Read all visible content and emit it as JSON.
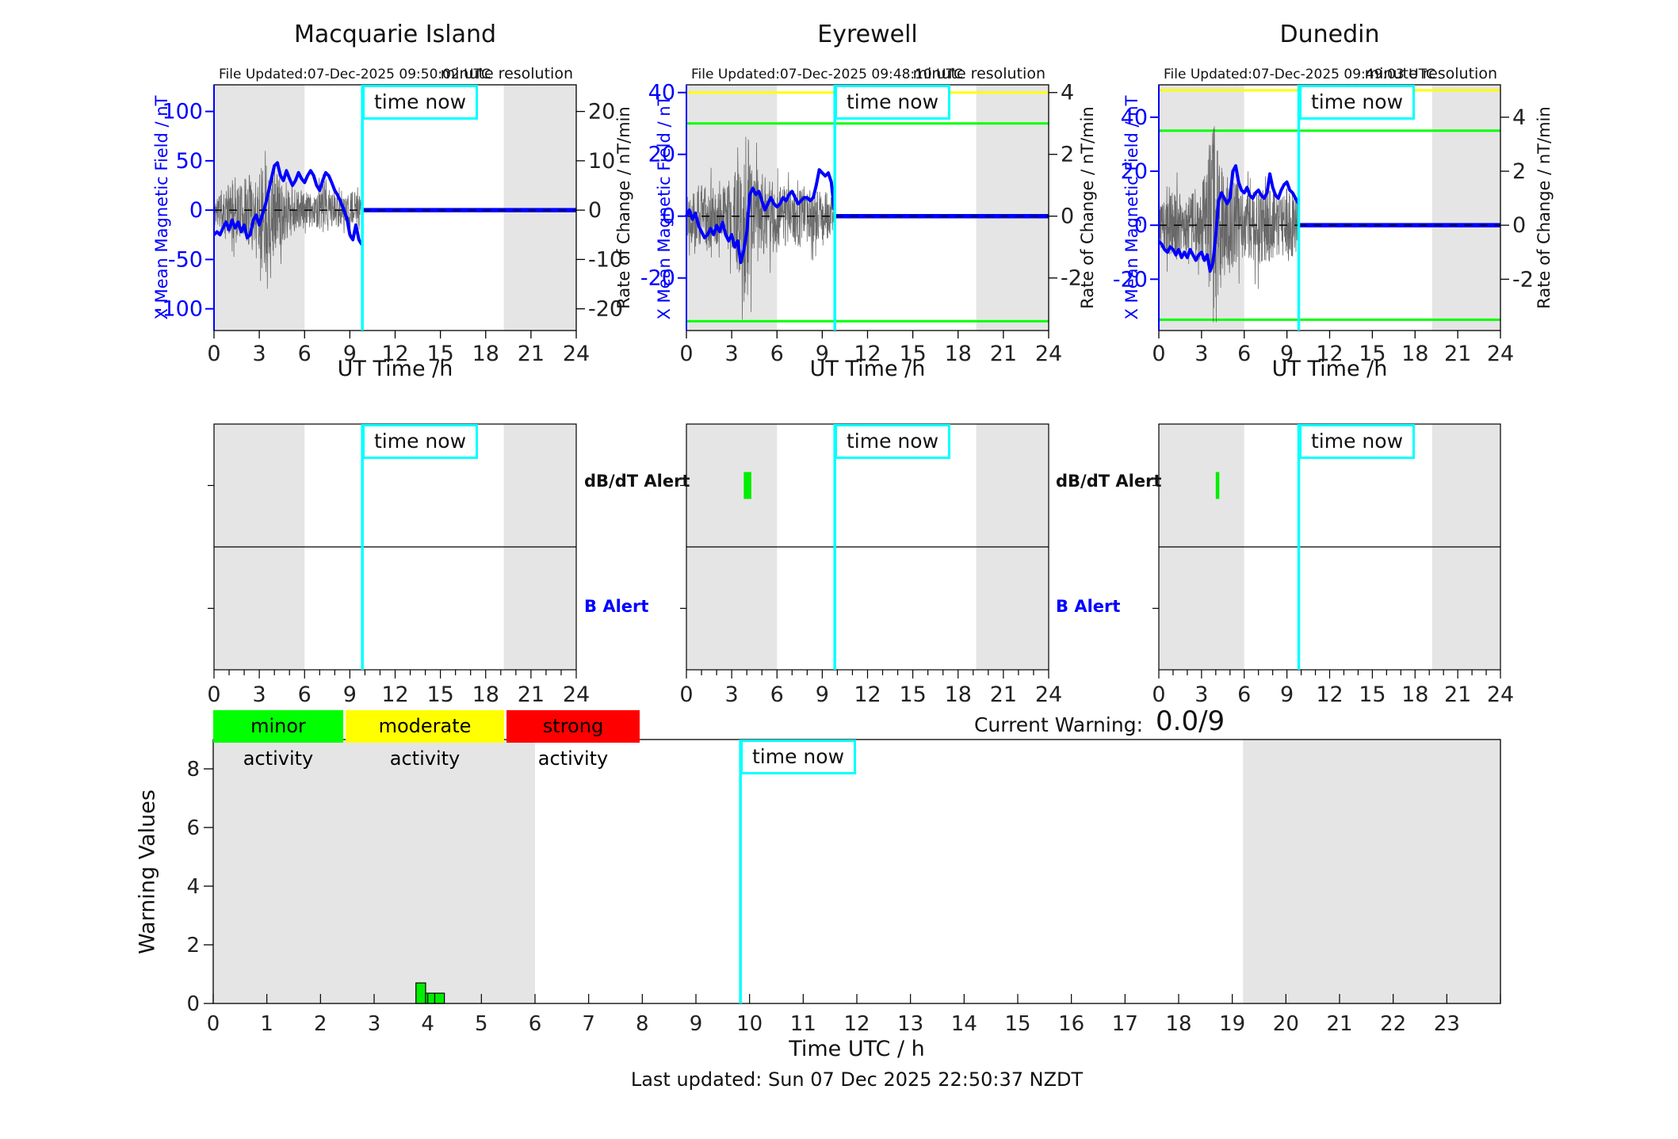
{
  "labels": {
    "time_now": "time now",
    "dbdt_alert": "dB/dT Alert",
    "b_alert": "B Alert",
    "current_warning_label": "Current Warning:",
    "current_warning_value": "0.0/9",
    "legend": [
      {
        "label": "minor activity",
        "color": "#00ff00"
      },
      {
        "label": "moderate activity",
        "color": "#ffff00"
      },
      {
        "label": "strong activity",
        "color": "#ff0000"
      }
    ],
    "footer": "Last updated: Sun 07 Dec 2025 22:50:37 NZDT"
  },
  "colors": {
    "line": "#0000ff",
    "noise": "#5a5a5a",
    "shade": "#e5e5e5",
    "cyan": "#00ffff",
    "threshold_yellow": "#ffff00",
    "threshold_green": "#00ff00",
    "alert_mark": "#00ee00",
    "bar_green": "#00ee00",
    "tick_text": "#222222"
  },
  "chart_data": [
    {
      "id": "macquarie",
      "type": "line",
      "title": "Macquarie Island",
      "file_updated": "File Updated:07-Dec-2025 09:50:02 UTC",
      "resolution_note": "minute resolution",
      "xlabel": "UT Time /h",
      "ylabel_left": "X Mean Magnetic Field / nT",
      "ylabel_right": "Rate of Change / nT/min",
      "xlim": [
        0,
        24
      ],
      "xticks": [
        0,
        3,
        6,
        9,
        12,
        15,
        18,
        21,
        24
      ],
      "ylim": [
        -122,
        127
      ],
      "yticks_left": [
        100,
        50,
        0,
        -50,
        -100
      ],
      "yticks_right": [
        20,
        10,
        0,
        -10,
        -20
      ],
      "right_scale": 5,
      "thresholds": [],
      "night_shading": [
        [
          0,
          6
        ],
        [
          19.2,
          24
        ]
      ],
      "time_now": 9.83,
      "noise_seed": 11,
      "series": {
        "t_start": 0,
        "t_step": 0.2,
        "mean_field": [
          -25,
          -22,
          -25,
          -18,
          -12,
          -20,
          -10,
          -18,
          -12,
          -22,
          -15,
          -28,
          -25,
          -10,
          -5,
          -15,
          -5,
          5,
          18,
          32,
          45,
          48,
          35,
          30,
          40,
          32,
          25,
          30,
          38,
          32,
          28,
          35,
          40,
          35,
          25,
          20,
          30,
          38,
          35,
          28,
          20,
          15,
          8,
          0,
          -8,
          -25,
          -30,
          -15,
          -30,
          -35
        ]
      },
      "noise_envelope": [
        18,
        18,
        20,
        22,
        25,
        28,
        30,
        35,
        30,
        25,
        30,
        40,
        45,
        40,
        35,
        45,
        55,
        65,
        60,
        50,
        45,
        40,
        35,
        32,
        30,
        28,
        25,
        22,
        20,
        20,
        18,
        18,
        16,
        15,
        18,
        22,
        25,
        28,
        25,
        22,
        20,
        18,
        15,
        15,
        15,
        18,
        20,
        18,
        15,
        12
      ]
    },
    {
      "id": "eyrewell",
      "type": "line",
      "title": "Eyrewell",
      "file_updated": "File Updated:07-Dec-2025 09:48:10 UTC",
      "resolution_note": "minute resolution",
      "xlabel": "UT Time /h",
      "ylabel_left": "X Mean Magnetic Field / nT",
      "ylabel_right": "Rate of Change / nT/min",
      "xlim": [
        0,
        24
      ],
      "xticks": [
        0,
        3,
        6,
        9,
        12,
        15,
        18,
        21,
        24
      ],
      "ylim": [
        -37,
        42.5
      ],
      "yticks_left": [
        40,
        20,
        0,
        -20
      ],
      "yticks_right": [
        4,
        2,
        0,
        -2
      ],
      "right_scale": 10,
      "thresholds": [
        {
          "v": 40,
          "color": "#ffff00"
        },
        {
          "v": 30,
          "color": "#00ff00"
        },
        {
          "v": -34,
          "color": "#00ff00"
        }
      ],
      "night_shading": [
        [
          0,
          6
        ],
        [
          19.2,
          24
        ]
      ],
      "time_now": 9.83,
      "noise_seed": 22,
      "series": {
        "t_start": 0,
        "t_step": 0.2,
        "mean_field": [
          0,
          2,
          -1,
          1,
          -3,
          -5,
          -7,
          -6,
          -4,
          -6,
          -3,
          -5,
          -2,
          -6,
          -8,
          -6,
          -10,
          -8,
          -15,
          -11,
          -5,
          7,
          9,
          7,
          8,
          5,
          2,
          4,
          6,
          4,
          3,
          4,
          6,
          5,
          7,
          8,
          6,
          4,
          5,
          6,
          6,
          5,
          6,
          10,
          15,
          14,
          13,
          14,
          11,
          2
        ]
      },
      "noise_envelope": [
        8,
        8,
        9,
        10,
        10,
        10,
        11,
        12,
        10,
        10,
        9,
        10,
        10,
        11,
        12,
        12,
        14,
        18,
        25,
        30,
        28,
        22,
        18,
        16,
        15,
        14,
        13,
        12,
        12,
        12,
        12,
        11,
        11,
        10,
        10,
        10,
        10,
        10,
        10,
        10,
        9,
        9,
        9,
        8,
        8,
        8,
        8,
        8,
        7,
        6
      ]
    },
    {
      "id": "dunedin",
      "type": "line",
      "title": "Dunedin",
      "file_updated": "File Updated:07-Dec-2025 09:49:03 UTC",
      "resolution_note": "minute resolution",
      "xlabel": "UT Time /h",
      "ylabel_left": "X Mean Magnetic Field / nT",
      "ylabel_right": "Rate of Change / nT/min",
      "xlim": [
        0,
        24
      ],
      "xticks": [
        0,
        3,
        6,
        9,
        12,
        15,
        18,
        21,
        24
      ],
      "ylim": [
        -39,
        52
      ],
      "yticks_left": [
        40,
        20,
        0,
        -20
      ],
      "yticks_right": [
        4,
        2,
        0,
        -2
      ],
      "right_scale": 10,
      "thresholds": [
        {
          "v": 50,
          "color": "#ffff00"
        },
        {
          "v": 35,
          "color": "#00ff00"
        },
        {
          "v": -35,
          "color": "#00ff00"
        }
      ],
      "night_shading": [
        [
          0,
          6
        ],
        [
          19.2,
          24
        ]
      ],
      "time_now": 9.83,
      "noise_seed": 33,
      "series": {
        "t_start": 0,
        "t_step": 0.2,
        "mean_field": [
          -6,
          -7,
          -9,
          -10,
          -8,
          -9,
          -11,
          -9,
          -12,
          -10,
          -12,
          -9,
          -11,
          -13,
          -11,
          -10,
          -13,
          -11,
          -17,
          -14,
          -4,
          9,
          12,
          10,
          8,
          10,
          20,
          22,
          16,
          13,
          12,
          14,
          11,
          10,
          12,
          13,
          11,
          10,
          12,
          19,
          14,
          11,
          10,
          13,
          15,
          16,
          13,
          12,
          10,
          8
        ]
      },
      "noise_envelope": [
        10,
        10,
        11,
        12,
        12,
        12,
        13,
        12,
        12,
        12,
        12,
        12,
        13,
        14,
        14,
        15,
        18,
        25,
        33,
        38,
        33,
        28,
        22,
        20,
        18,
        18,
        17,
        16,
        15,
        15,
        14,
        14,
        13,
        13,
        14,
        15,
        15,
        14,
        13,
        13,
        13,
        12,
        12,
        12,
        13,
        14,
        13,
        12,
        11,
        10
      ]
    },
    {
      "id": "macquarie-alert",
      "type": "alert",
      "xlim": [
        0,
        24
      ],
      "xticks": [
        0,
        3,
        6,
        9,
        12,
        15,
        18,
        21,
        24
      ],
      "minor_step": 1,
      "night_shading": [
        [
          0,
          6
        ],
        [
          19.2,
          24
        ]
      ],
      "time_now": 9.83,
      "marks": []
    },
    {
      "id": "eyrewell-alert",
      "type": "alert",
      "xlim": [
        0,
        24
      ],
      "xticks": [
        0,
        3,
        6,
        9,
        12,
        15,
        18,
        21,
        24
      ],
      "minor_step": 1,
      "night_shading": [
        [
          0,
          6
        ],
        [
          19.2,
          24
        ]
      ],
      "time_now": 9.83,
      "marks": [
        {
          "row": "dbdt",
          "t0": 3.8,
          "t1": 4.3
        }
      ]
    },
    {
      "id": "dunedin-alert",
      "type": "alert",
      "xlim": [
        0,
        24
      ],
      "xticks": [
        0,
        3,
        6,
        9,
        12,
        15,
        18,
        21,
        24
      ],
      "minor_step": 1,
      "night_shading": [
        [
          0,
          6
        ],
        [
          19.2,
          24
        ]
      ],
      "time_now": 9.83,
      "marks": [
        {
          "row": "dbdt",
          "t0": 4.0,
          "t1": 4.25
        }
      ]
    },
    {
      "id": "warning",
      "type": "bar",
      "xlabel": "Time UTC / h",
      "ylabel": "Warning Values",
      "xlim": [
        0,
        24
      ],
      "xticks": [
        0,
        1,
        2,
        3,
        4,
        5,
        6,
        7,
        8,
        9,
        10,
        11,
        12,
        13,
        14,
        15,
        16,
        17,
        18,
        19,
        20,
        21,
        22,
        23
      ],
      "ylim": [
        0,
        9
      ],
      "yticks": [
        0,
        2,
        4,
        6,
        8
      ],
      "night_shading": [
        [
          0,
          6
        ],
        [
          19.2,
          24
        ]
      ],
      "time_now": 9.83,
      "bar_color": "#00ee00",
      "bars": [
        {
          "t0": 3.78,
          "t1": 3.96,
          "value": 0.7
        },
        {
          "t0": 3.96,
          "t1": 4.13,
          "value": 0.35
        },
        {
          "t0": 4.13,
          "t1": 4.31,
          "value": 0.35
        }
      ]
    }
  ]
}
